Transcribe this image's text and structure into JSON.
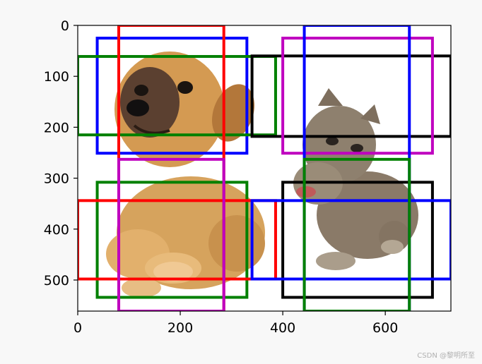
{
  "chart_data": {
    "type": "image-with-bounding-boxes",
    "title": "",
    "xlabel": "",
    "ylabel": "",
    "xlim": [
      0,
      728
    ],
    "ylim": [
      561,
      0
    ],
    "x_ticks": [
      0,
      200,
      400,
      600
    ],
    "y_ticks": [
      0,
      100,
      200,
      300,
      400,
      500
    ],
    "image_description": "photo of a puppy (left) and a kitten (right) on white background",
    "boxes": [
      {
        "x1": 38,
        "y1": 25,
        "x2": 330,
        "y2": 251,
        "color": "#0000ff"
      },
      {
        "x1": 0,
        "y1": 61,
        "x2": 386,
        "y2": 215,
        "color": "#008000"
      },
      {
        "x1": 80,
        "y1": 0,
        "x2": 285,
        "y2": 561,
        "color": "#ff0000"
      },
      {
        "x1": 340,
        "y1": 60,
        "x2": 728,
        "y2": 218,
        "color": "#000000"
      },
      {
        "x1": 400,
        "y1": 25,
        "x2": 692,
        "y2": 251,
        "color": "#bf00bf"
      },
      {
        "x1": 442,
        "y1": 0,
        "x2": 647,
        "y2": 561,
        "color": "#0000ff"
      },
      {
        "x1": 38,
        "y1": 308,
        "x2": 330,
        "y2": 534,
        "color": "#008000"
      },
      {
        "x1": 0,
        "y1": 344,
        "x2": 386,
        "y2": 498,
        "color": "#ff0000"
      },
      {
        "x1": 80,
        "y1": 263,
        "x2": 285,
        "y2": 561,
        "color": "#bf00bf"
      },
      {
        "x1": 400,
        "y1": 308,
        "x2": 692,
        "y2": 534,
        "color": "#000000"
      },
      {
        "x1": 340,
        "y1": 344,
        "x2": 728,
        "y2": 498,
        "color": "#0000ff"
      },
      {
        "x1": 442,
        "y1": 263,
        "x2": 647,
        "y2": 561,
        "color": "#008000"
      }
    ]
  },
  "watermark": "CSDN @黎明所至"
}
